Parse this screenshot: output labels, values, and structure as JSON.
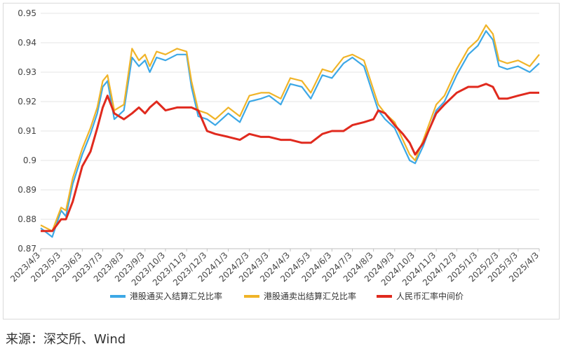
{
  "source": "来源：深交所、Wind",
  "chart_data": {
    "type": "line",
    "title": "",
    "xlabel": "",
    "ylabel": "",
    "ylim": [
      0.87,
      0.95
    ],
    "yticks": [
      "0.87",
      "0.88",
      "0.89",
      "0.9",
      "0.91",
      "0.92",
      "0.93",
      "0.94",
      "0.95"
    ],
    "xticks": [
      "2023/4/3",
      "2023/5/3",
      "2023/6/3",
      "2023/7/3",
      "2023/8/3",
      "2023/9/3",
      "2023/10/3",
      "2023/11/3",
      "2023/12/3",
      "2024/1/3",
      "2024/2/3",
      "2024/3/3",
      "2024/4/3",
      "2024/5/3",
      "2024/6/3",
      "2024/7/3",
      "2024/8/3",
      "2024/9/3",
      "2024/10/3",
      "2024/11/3",
      "2024/12/3",
      "2025/1/3",
      "2025/2/3",
      "2025/3/3",
      "2025/4/3"
    ],
    "grid": "horizontal",
    "legend": "bottom",
    "series": [
      {
        "name": "港股通买入结算汇兑比率",
        "color": "#3da8e6",
        "x": [
          "2023/4/3",
          "2023/4/20",
          "2023/5/3",
          "2023/5/10",
          "2023/5/20",
          "2023/6/3",
          "2023/6/15",
          "2023/6/25",
          "2023/7/3",
          "2023/7/10",
          "2023/7/20",
          "2023/8/3",
          "2023/8/15",
          "2023/8/25",
          "2023/9/3",
          "2023/9/10",
          "2023/9/20",
          "2023/10/3",
          "2023/10/20",
          "2023/11/3",
          "2023/11/10",
          "2023/11/20",
          "2023/12/3",
          "2023/12/15",
          "2024/1/3",
          "2024/1/20",
          "2024/2/3",
          "2024/2/20",
          "2024/3/3",
          "2024/3/20",
          "2024/4/3",
          "2024/4/20",
          "2024/5/3",
          "2024/5/20",
          "2024/6/3",
          "2024/6/20",
          "2024/7/3",
          "2024/7/20",
          "2024/8/3",
          "2024/8/10",
          "2024/8/20",
          "2024/9/3",
          "2024/9/15",
          "2024/9/25",
          "2024/10/3",
          "2024/10/15",
          "2024/11/3",
          "2024/11/15",
          "2024/12/3",
          "2024/12/20",
          "2025/1/3",
          "2025/1/15",
          "2025/1/25",
          "2025/2/3",
          "2025/2/15",
          "2025/3/3",
          "2025/3/20",
          "2025/4/3"
        ],
        "values": [
          0.877,
          0.874,
          0.883,
          0.881,
          0.892,
          0.902,
          0.909,
          0.916,
          0.925,
          0.927,
          0.914,
          0.917,
          0.935,
          0.932,
          0.934,
          0.93,
          0.935,
          0.934,
          0.936,
          0.936,
          0.925,
          0.915,
          0.914,
          0.912,
          0.916,
          0.913,
          0.92,
          0.921,
          0.922,
          0.919,
          0.926,
          0.925,
          0.921,
          0.929,
          0.928,
          0.933,
          0.935,
          0.932,
          0.922,
          0.917,
          0.914,
          0.911,
          0.905,
          0.9,
          0.899,
          0.905,
          0.917,
          0.92,
          0.929,
          0.936,
          0.939,
          0.944,
          0.941,
          0.932,
          0.931,
          0.932,
          0.93,
          0.933
        ]
      },
      {
        "name": "港股通卖出结算汇兑比率",
        "color": "#f0b428",
        "x": [
          "2023/4/3",
          "2023/4/20",
          "2023/5/3",
          "2023/5/10",
          "2023/5/20",
          "2023/6/3",
          "2023/6/15",
          "2023/6/25",
          "2023/7/3",
          "2023/7/10",
          "2023/7/20",
          "2023/8/3",
          "2023/8/15",
          "2023/8/25",
          "2023/9/3",
          "2023/9/10",
          "2023/9/20",
          "2023/10/3",
          "2023/10/20",
          "2023/11/3",
          "2023/11/10",
          "2023/11/20",
          "2023/12/3",
          "2023/12/15",
          "2024/1/3",
          "2024/1/20",
          "2024/2/3",
          "2024/2/20",
          "2024/3/3",
          "2024/3/20",
          "2024/4/3",
          "2024/4/20",
          "2024/5/3",
          "2024/5/20",
          "2024/6/3",
          "2024/6/20",
          "2024/7/3",
          "2024/7/20",
          "2024/8/3",
          "2024/8/10",
          "2024/8/20",
          "2024/9/3",
          "2024/9/15",
          "2024/9/25",
          "2024/10/3",
          "2024/10/15",
          "2024/11/3",
          "2024/11/15",
          "2024/12/3",
          "2024/12/20",
          "2025/1/3",
          "2025/1/15",
          "2025/1/25",
          "2025/2/3",
          "2025/2/15",
          "2025/3/3",
          "2025/3/20",
          "2025/4/3"
        ],
        "values": [
          0.878,
          0.876,
          0.884,
          0.883,
          0.894,
          0.904,
          0.911,
          0.918,
          0.927,
          0.929,
          0.917,
          0.919,
          0.938,
          0.934,
          0.936,
          0.932,
          0.937,
          0.936,
          0.938,
          0.937,
          0.927,
          0.917,
          0.916,
          0.914,
          0.918,
          0.915,
          0.922,
          0.923,
          0.923,
          0.921,
          0.928,
          0.927,
          0.923,
          0.931,
          0.93,
          0.935,
          0.936,
          0.934,
          0.924,
          0.919,
          0.916,
          0.913,
          0.907,
          0.902,
          0.9,
          0.907,
          0.919,
          0.922,
          0.931,
          0.938,
          0.941,
          0.946,
          0.943,
          0.934,
          0.933,
          0.934,
          0.932,
          0.936
        ]
      },
      {
        "name": "人民币汇率中间价",
        "color": "#e02a1e",
        "x": [
          "2023/4/3",
          "2023/4/20",
          "2023/5/3",
          "2023/5/10",
          "2023/5/20",
          "2023/6/3",
          "2023/6/15",
          "2023/6/25",
          "2023/7/3",
          "2023/7/10",
          "2023/7/20",
          "2023/8/3",
          "2023/8/15",
          "2023/8/25",
          "2023/9/3",
          "2023/9/10",
          "2023/9/20",
          "2023/10/3",
          "2023/10/20",
          "2023/11/3",
          "2023/11/10",
          "2023/11/20",
          "2023/12/3",
          "2023/12/15",
          "2024/1/3",
          "2024/1/20",
          "2024/2/3",
          "2024/2/20",
          "2024/3/3",
          "2024/3/20",
          "2024/4/3",
          "2024/4/20",
          "2024/5/3",
          "2024/5/20",
          "2024/6/3",
          "2024/6/20",
          "2024/7/3",
          "2024/7/20",
          "2024/8/3",
          "2024/8/10",
          "2024/8/20",
          "2024/9/3",
          "2024/9/15",
          "2024/9/25",
          "2024/10/3",
          "2024/10/15",
          "2024/11/3",
          "2024/11/15",
          "2024/12/3",
          "2024/12/20",
          "2025/1/3",
          "2025/1/15",
          "2025/1/25",
          "2025/2/3",
          "2025/2/15",
          "2025/3/3",
          "2025/3/20",
          "2025/4/3"
        ],
        "values": [
          0.876,
          0.876,
          0.88,
          0.88,
          0.886,
          0.898,
          0.903,
          0.911,
          0.918,
          0.922,
          0.916,
          0.914,
          0.916,
          0.918,
          0.916,
          0.918,
          0.92,
          0.917,
          0.918,
          0.918,
          0.918,
          0.917,
          0.91,
          0.909,
          0.908,
          0.907,
          0.909,
          0.908,
          0.908,
          0.907,
          0.907,
          0.906,
          0.906,
          0.909,
          0.91,
          0.91,
          0.912,
          0.913,
          0.914,
          0.917,
          0.916,
          0.912,
          0.909,
          0.906,
          0.902,
          0.906,
          0.916,
          0.919,
          0.923,
          0.925,
          0.925,
          0.926,
          0.925,
          0.921,
          0.921,
          0.922,
          0.923,
          0.923
        ]
      }
    ]
  }
}
